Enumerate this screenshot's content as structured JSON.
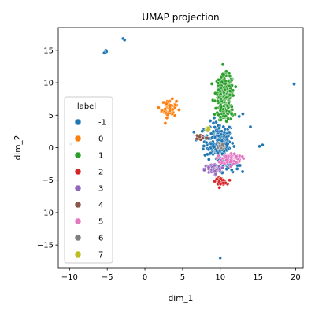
{
  "chart_data": {
    "type": "scatter",
    "title": "UMAP projection",
    "xlabel": "dim_1",
    "ylabel": "dim_2",
    "xlim": [
      -11.5,
      21
    ],
    "ylim": [
      -18.5,
      18.5
    ],
    "xticks": [
      -10,
      -5,
      0,
      5,
      10,
      15,
      20
    ],
    "yticks": [
      -15,
      -10,
      -5,
      0,
      5,
      10,
      15
    ],
    "grid": false,
    "legend": {
      "title": "label",
      "placement": "center-left"
    },
    "series": [
      {
        "name": "-1",
        "color": "#1f77b4",
        "clusters": [
          {
            "center": [
              9.8,
              1.0
            ],
            "spread": [
              1.6,
              2.4
            ],
            "count": 170
          },
          {
            "center": [
              11.0,
              -2.5
            ],
            "spread": [
              1.2,
              1.0
            ],
            "count": 40
          }
        ],
        "points": [
          [
            -5.2,
            15.0
          ],
          [
            -5.4,
            14.6
          ],
          [
            -5.1,
            14.8
          ],
          [
            -2.9,
            16.8
          ],
          [
            -2.7,
            16.6
          ],
          [
            -9.8,
            0.6
          ],
          [
            19.8,
            9.8
          ],
          [
            14.0,
            3.2
          ],
          [
            15.2,
            0.2
          ],
          [
            15.6,
            0.4
          ],
          [
            10.0,
            -17.0
          ],
          [
            13.0,
            5.2
          ],
          [
            12.5,
            4.8
          ],
          [
            6.5,
            2.4
          ],
          [
            6.8,
            1.2
          ]
        ]
      },
      {
        "name": "0",
        "color": "#ff7f0e",
        "clusters": [
          {
            "center": [
              3.2,
              6.0
            ],
            "spread": [
              0.8,
              1.1
            ],
            "count": 60
          }
        ]
      },
      {
        "name": "1",
        "color": "#2ca02c",
        "clusters": [
          {
            "center": [
              10.6,
              8.5
            ],
            "spread": [
              1.0,
              2.2
            ],
            "count": 200
          },
          {
            "center": [
              10.8,
              5.5
            ],
            "spread": [
              0.9,
              1.0
            ],
            "count": 50
          }
        ]
      },
      {
        "name": "2",
        "color": "#d62728",
        "clusters": [
          {
            "center": [
              10.1,
              -5.2
            ],
            "spread": [
              0.6,
              0.4
            ],
            "count": 40
          }
        ]
      },
      {
        "name": "3",
        "color": "#9467bd",
        "clusters": [
          {
            "center": [
              9.0,
              -3.3
            ],
            "spread": [
              0.9,
              0.7
            ],
            "count": 70
          }
        ]
      },
      {
        "name": "4",
        "color": "#8c564b",
        "clusters": [
          {
            "center": [
              7.5,
              1.6
            ],
            "spread": [
              0.6,
              0.4
            ],
            "count": 15
          }
        ]
      },
      {
        "name": "5",
        "color": "#e377c2",
        "clusters": [
          {
            "center": [
              11.5,
              -1.7
            ],
            "spread": [
              1.1,
              0.7
            ],
            "count": 80
          }
        ]
      },
      {
        "name": "6",
        "color": "#7f7f7f",
        "clusters": [
          {
            "center": [
              10.0,
              0.3
            ],
            "spread": [
              0.5,
              0.5
            ],
            "count": 15
          }
        ]
      },
      {
        "name": "7",
        "color": "#bcbd22",
        "clusters": [
          {
            "center": [
              8.3,
              2.9
            ],
            "spread": [
              0.3,
              0.3
            ],
            "count": 12
          }
        ]
      }
    ]
  }
}
